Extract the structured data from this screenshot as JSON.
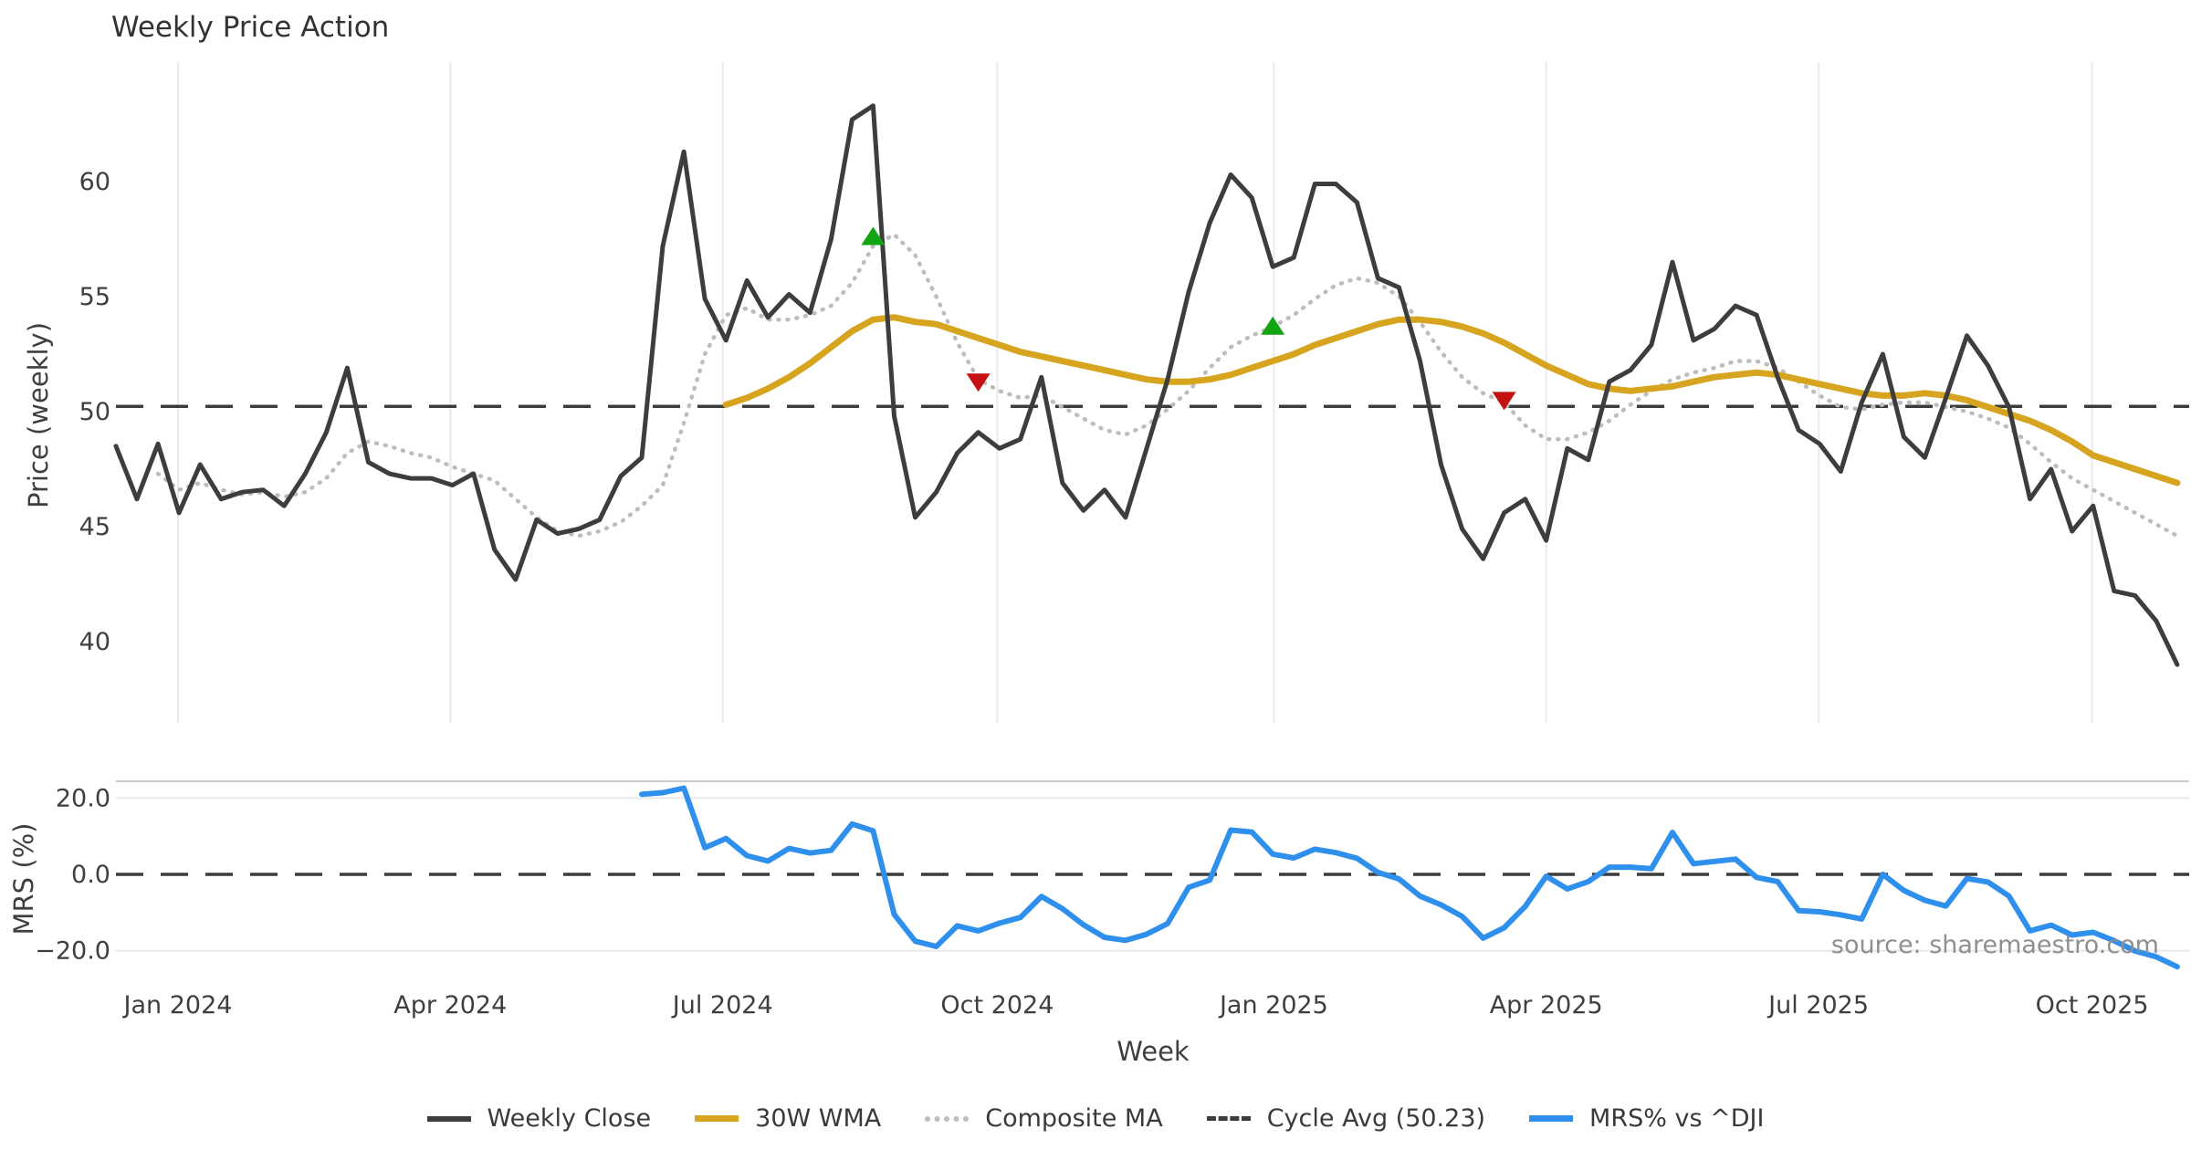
{
  "title": "Weekly Price Action",
  "source_note": "source: sharemaestro.com",
  "colors": {
    "text": "#333333",
    "tick_text": "#3f3f3f",
    "close": "#3d3d3d",
    "wma": "#d6a41f",
    "composite": "#bdbdbd",
    "cycle": "#3c3c3c",
    "mrs": "#2e90ec",
    "marker_up": "#12a412",
    "marker_down": "#c41212",
    "grid_vertical": "#e9eaf3",
    "grid_horizontal": "#e8e8e8",
    "panel_top_spine": "#c9cdd2",
    "source_text": "#8f8f8f"
  },
  "chart_data": {
    "type": "line",
    "x_unit": "weeks",
    "xlabel": "Week",
    "x_ticks": [
      {
        "week": 2.95,
        "label": "Jan 2024"
      },
      {
        "week": 15.9,
        "label": "Apr 2024"
      },
      {
        "week": 28.85,
        "label": "Jul 2024"
      },
      {
        "week": 41.9,
        "label": "Oct 2024"
      },
      {
        "week": 55.05,
        "label": "Jan 2025"
      },
      {
        "week": 68.0,
        "label": "Apr 2025"
      },
      {
        "week": 80.95,
        "label": "Jul 2025"
      },
      {
        "week": 93.95,
        "label": "Oct 2025"
      }
    ],
    "panels": [
      {
        "ylabel": "Price (weekly)",
        "ylim": [
          38,
          65.5
        ],
        "grid": "vertical-only",
        "yticks": [
          {
            "v": 40,
            "label": "40"
          },
          {
            "v": 45,
            "label": "45"
          },
          {
            "v": 50,
            "label": "50"
          },
          {
            "v": 55,
            "label": "55"
          },
          {
            "v": 60,
            "label": "60"
          }
        ]
      },
      {
        "ylabel": "MRS (%)",
        "ylim": [
          -28,
          24.5
        ],
        "grid": "horizontal-only",
        "yticks": [
          {
            "v": -20,
            "label": "−20.0"
          },
          {
            "v": 0,
            "label": "0.0"
          },
          {
            "v": 20,
            "label": "20.0"
          }
        ]
      }
    ],
    "cycle_avg": 50.23,
    "mrs_zero_line": 0,
    "legend_position": "bottom-center",
    "series": [
      {
        "name": "Weekly Close",
        "panel": 0,
        "style": "solid-dark",
        "start_week": 0,
        "values": [
          48.5,
          46.2,
          48.6,
          45.6,
          47.7,
          46.2,
          46.5,
          46.6,
          45.9,
          47.3,
          49.1,
          51.9,
          47.8,
          47.3,
          47.1,
          47.1,
          46.8,
          47.3,
          44.0,
          42.7,
          45.3,
          44.7,
          44.9,
          45.3,
          47.2,
          48.0,
          57.2,
          61.3,
          54.9,
          53.1,
          55.7,
          54.1,
          55.1,
          54.3,
          57.5,
          62.7,
          63.3,
          49.8,
          45.4,
          46.5,
          48.2,
          49.1,
          48.4,
          48.8,
          51.5,
          46.9,
          45.7,
          46.6,
          45.4,
          48.4,
          51.4,
          55.2,
          58.2,
          60.3,
          59.3,
          56.3,
          56.7,
          59.9,
          59.9,
          59.1,
          55.8,
          55.4,
          52.2,
          47.7,
          44.9,
          43.6,
          45.6,
          46.2,
          44.4,
          48.4,
          47.9,
          51.3,
          51.8,
          52.9,
          56.5,
          53.1,
          53.6,
          54.6,
          54.2,
          51.5,
          49.2,
          48.6,
          47.4,
          50.4,
          52.5,
          48.9,
          48.0,
          50.6,
          53.3,
          52.0,
          50.2,
          46.2,
          47.5,
          44.8,
          45.9,
          42.2,
          42.0,
          40.9,
          39.0
        ]
      },
      {
        "name": "30W WMA",
        "panel": 0,
        "style": "solid-gold",
        "start_week": 29,
        "values": [
          50.3,
          50.6,
          51.0,
          51.5,
          52.1,
          52.8,
          53.5,
          54.0,
          54.1,
          53.9,
          53.8,
          53.5,
          53.2,
          52.9,
          52.6,
          52.4,
          52.2,
          52.0,
          51.8,
          51.6,
          51.4,
          51.3,
          51.3,
          51.4,
          51.6,
          51.9,
          52.2,
          52.5,
          52.9,
          53.2,
          53.5,
          53.8,
          54.0,
          54.0,
          53.9,
          53.7,
          53.4,
          53.0,
          52.5,
          52.0,
          51.6,
          51.2,
          51.0,
          50.9,
          51.0,
          51.1,
          51.3,
          51.5,
          51.6,
          51.7,
          51.6,
          51.4,
          51.2,
          51.0,
          50.8,
          50.7,
          50.7,
          50.8,
          50.7,
          50.5,
          50.2,
          49.9,
          49.6,
          49.2,
          48.7,
          48.1,
          47.8,
          47.5,
          47.2,
          46.9
        ]
      },
      {
        "name": "Composite MA",
        "panel": 0,
        "style": "dotted-gray",
        "start_week": 2,
        "values": [
          47.3,
          46.6,
          46.9,
          46.6,
          46.4,
          46.5,
          46.3,
          46.5,
          47.1,
          48.2,
          48.7,
          48.5,
          48.2,
          48.0,
          47.6,
          47.3,
          47.0,
          46.2,
          45.4,
          44.8,
          44.6,
          44.8,
          45.2,
          45.9,
          46.8,
          49.5,
          52.5,
          54.2,
          54.5,
          54.0,
          54.0,
          54.2,
          54.6,
          55.6,
          57.2,
          57.7,
          56.8,
          55.0,
          53.0,
          51.4,
          50.9,
          50.6,
          50.7,
          50.2,
          49.7,
          49.2,
          49.0,
          49.4,
          50.1,
          50.9,
          51.9,
          52.8,
          53.3,
          53.7,
          54.2,
          54.9,
          55.5,
          55.8,
          55.6,
          55.0,
          53.9,
          52.6,
          51.5,
          50.8,
          50.4,
          49.4,
          48.8,
          48.8,
          49.1,
          49.6,
          50.3,
          50.9,
          51.4,
          51.7,
          51.9,
          52.2,
          52.2,
          51.9,
          51.3,
          50.7,
          50.2,
          50.1,
          50.3,
          50.4,
          50.4,
          50.2,
          50.0,
          49.7,
          49.3,
          48.6,
          47.8,
          47.1,
          46.6,
          46.1,
          45.6,
          45.1,
          44.6
        ]
      },
      {
        "name": "Cycle Avg (50.23)",
        "panel": 0,
        "style": "dashed-dark",
        "constant": 50.23
      },
      {
        "name": "MRS% vs ^DJI",
        "panel": 1,
        "style": "solid-blue",
        "start_week": 25,
        "values": [
          21.0,
          21.4,
          22.6,
          7.0,
          9.4,
          4.9,
          3.5,
          6.8,
          5.6,
          6.3,
          13.2,
          11.4,
          -10.5,
          -17.5,
          -18.9,
          -13.5,
          -14.8,
          -12.8,
          -11.3,
          -5.8,
          -9.0,
          -13.2,
          -16.5,
          -17.3,
          -15.7,
          -12.9,
          -3.4,
          -1.5,
          11.6,
          11.1,
          5.3,
          4.3,
          6.6,
          5.7,
          4.2,
          0.5,
          -1.2,
          -5.7,
          -8.0,
          -11.0,
          -16.7,
          -14.0,
          -8.4,
          -0.5,
          -3.8,
          -1.9,
          1.9,
          1.9,
          1.5,
          11.0,
          2.8,
          3.4,
          4.0,
          -0.8,
          -1.9,
          -9.5,
          -9.8,
          -10.6,
          -11.7,
          0.0,
          -4.2,
          -6.8,
          -8.3,
          -1.1,
          -2.0,
          -5.7,
          -14.8,
          -13.3,
          -15.9,
          -15.2,
          -17.4,
          -20.1,
          -21.6,
          -24.2
        ]
      }
    ],
    "markers": [
      {
        "week": 36,
        "value": 57.6,
        "dir": "up"
      },
      {
        "week": 41,
        "value": 51.3,
        "dir": "down"
      },
      {
        "week": 55,
        "value": 53.7,
        "dir": "up"
      },
      {
        "week": 66,
        "value": 50.5,
        "dir": "down"
      }
    ]
  },
  "legend": {
    "items": [
      {
        "label": "Weekly Close"
      },
      {
        "label": "30W WMA"
      },
      {
        "label": "Composite MA"
      },
      {
        "label": "Cycle Avg (50.23)"
      },
      {
        "label": "MRS% vs ^DJI"
      }
    ]
  }
}
